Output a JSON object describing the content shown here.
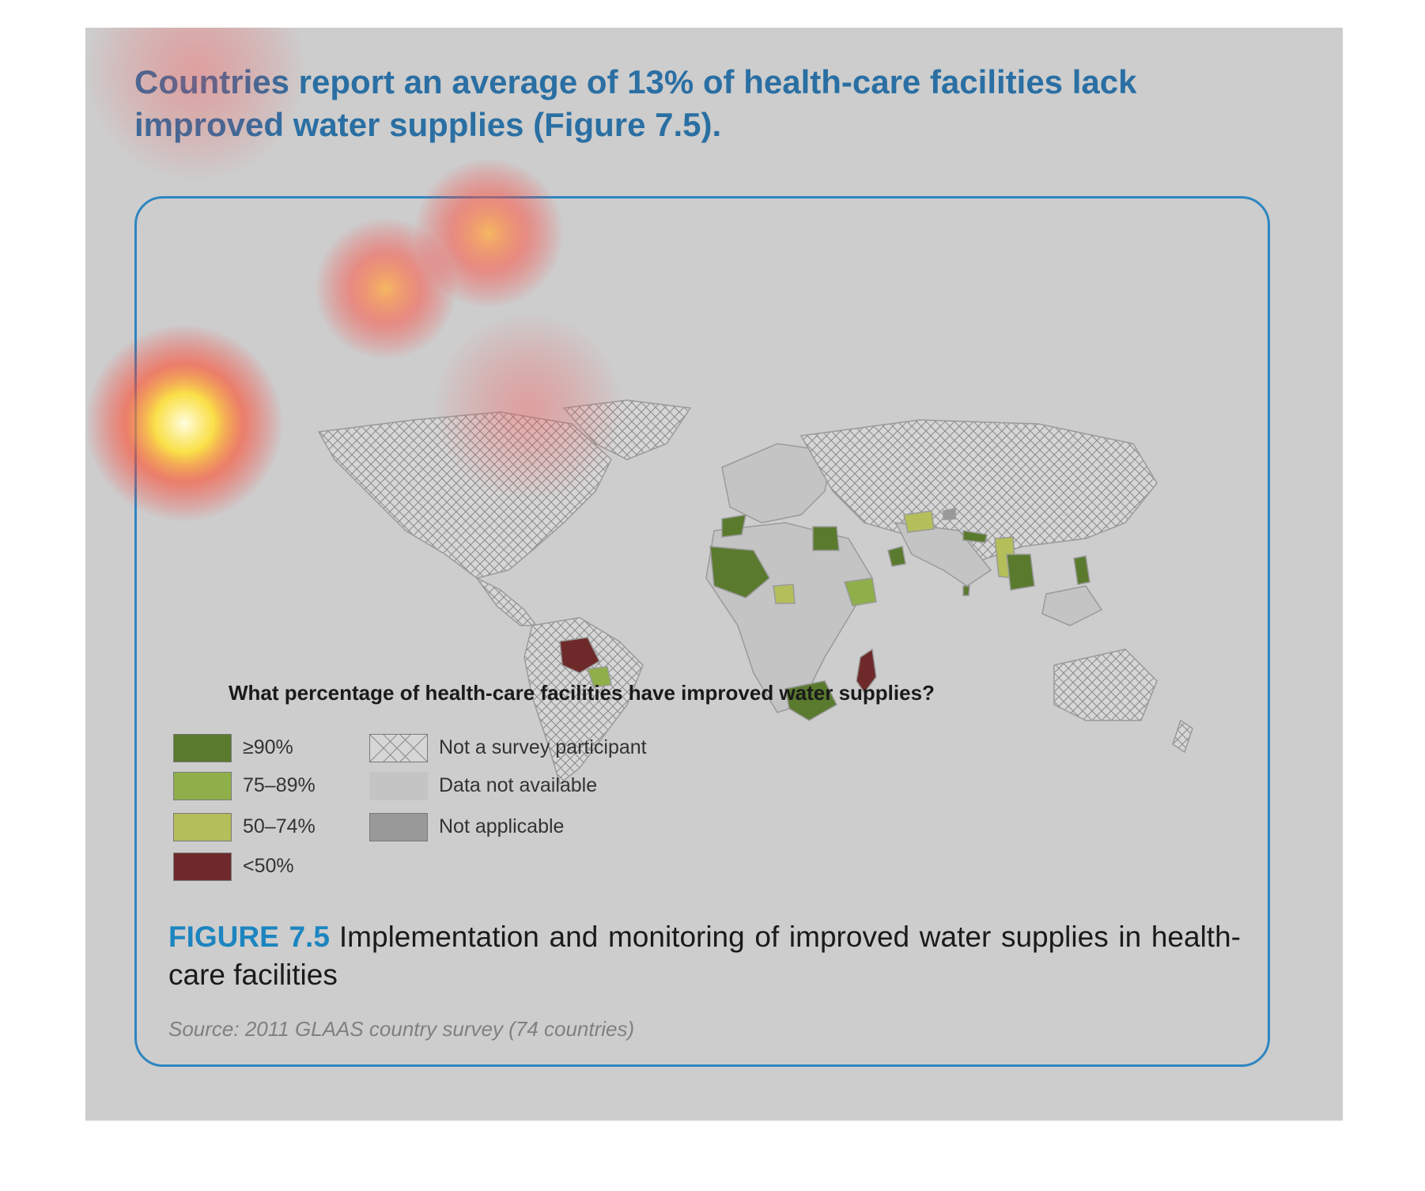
{
  "headline": "Countries report an average of 13% of health-care facilities lack improved water supplies (Figure 7.5).",
  "map": {
    "legend_title": "What percentage of health-care facilities have improved water supplies?",
    "legend": [
      {
        "label": "≥90%",
        "color": "#5a7a2e"
      },
      {
        "label": "75–89%",
        "color": "#8faf4a"
      },
      {
        "label": "50–74%",
        "color": "#b4be5a"
      },
      {
        "label": "<50%",
        "color": "#6e2a2a"
      },
      {
        "label": "Not a survey participant",
        "pattern": "crosshatch"
      },
      {
        "label": "Data not available",
        "color": "#c4c4c4"
      },
      {
        "label": "Not applicable",
        "color": "#999999"
      }
    ]
  },
  "caption": {
    "figure_label": "FIGURE 7.5",
    "text": "Implementation and monitoring of improved water supplies in health-care facilities"
  },
  "source": "Source: 2011 GLAAS country survey (74 countries)"
}
